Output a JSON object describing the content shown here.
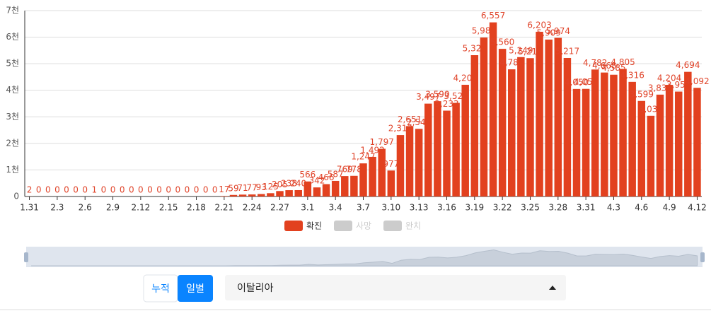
{
  "chart_data": {
    "type": "bar",
    "categories": [
      "1.31",
      null,
      null,
      "2.3",
      null,
      null,
      "2.6",
      null,
      null,
      "2.9",
      null,
      null,
      "2.12",
      null,
      null,
      "2.15",
      null,
      null,
      "2.18",
      null,
      null,
      "2.21",
      null,
      null,
      "2.24",
      null,
      null,
      "2.27",
      null,
      null,
      "3.1",
      null,
      null,
      "3.4",
      null,
      null,
      "3.7",
      null,
      null,
      "3.10",
      null,
      null,
      "3.13",
      null,
      null,
      "3.16",
      null,
      null,
      "3.19",
      null,
      null,
      "3.22",
      null,
      null,
      "3.25",
      null,
      null,
      "3.28",
      null,
      null,
      "3.31",
      null,
      null,
      "4.3",
      null,
      null,
      "4.6",
      null,
      null,
      "4.9",
      null,
      null,
      "4.12"
    ],
    "series": [
      {
        "name": "확진",
        "color": "#e2411f",
        "values": [
          2,
          0,
          0,
          0,
          0,
          0,
          0,
          1,
          0,
          0,
          0,
          0,
          0,
          0,
          0,
          0,
          0,
          0,
          0,
          0,
          0,
          17,
          59,
          71,
          77,
          93,
          125,
          205,
          238,
          240,
          566,
          342,
          466,
          587,
          769,
          778,
          1247,
          1492,
          1797,
          977,
          2313,
          2651,
          2547,
          3497,
          3590,
          3233,
          3526,
          4207,
          5322,
          5986,
          6557,
          5560,
          4789,
          5249,
          5210,
          6203,
          5909,
          5974,
          5217,
          4050,
          4053,
          4782,
          4668,
          4585,
          4805,
          4316,
          3599,
          3039,
          3836,
          4204,
          3951,
          4694,
          4092
        ],
        "value_labels": [
          "2",
          "0",
          "0",
          "0",
          "0",
          "0",
          "0",
          "1",
          "0",
          "0",
          "0",
          "0",
          "0",
          "0",
          "0",
          "0",
          "0",
          "0",
          "0",
          "0",
          "0",
          "17",
          "59",
          "71",
          "77",
          "93",
          "125",
          "205",
          "238",
          "240",
          "566",
          "342",
          "466",
          "587",
          "769",
          "778",
          "1,247",
          "1,492",
          "1,797",
          "977",
          "2,313",
          "2,651",
          "2,547",
          "3,497",
          "3,590",
          "3,233",
          "3,526",
          "4,207",
          "5,322",
          "5,986",
          "6,557",
          "5,560",
          "4,789",
          "5,249",
          "5,210",
          "6,203",
          "5,909",
          "5,974",
          "5,217",
          "4,050",
          "4,053",
          "4,782",
          "4,668",
          "4,585",
          "4,805",
          "4,316",
          "3,599",
          "3,039",
          "3,836",
          "4,204",
          "3,951",
          "4,694",
          "4,092"
        ]
      }
    ],
    "hidden_series": [
      "사망",
      "완치"
    ],
    "ylim": [
      0,
      7000
    ],
    "yticks": [
      0,
      {
        "value": 1000,
        "label": "1천"
      },
      {
        "value": 2000,
        "label": "2천"
      },
      {
        "value": 3000,
        "label": "3천"
      },
      {
        "value": 4000,
        "label": "4천"
      },
      {
        "value": 5000,
        "label": "5천"
      },
      {
        "value": 6000,
        "label": "6천"
      },
      {
        "value": 7000,
        "label": "7천"
      }
    ],
    "grid": true
  },
  "controls": {
    "buttons": [
      "누적",
      "일별"
    ],
    "active_button": 1,
    "dropdown": "이탈리아"
  }
}
